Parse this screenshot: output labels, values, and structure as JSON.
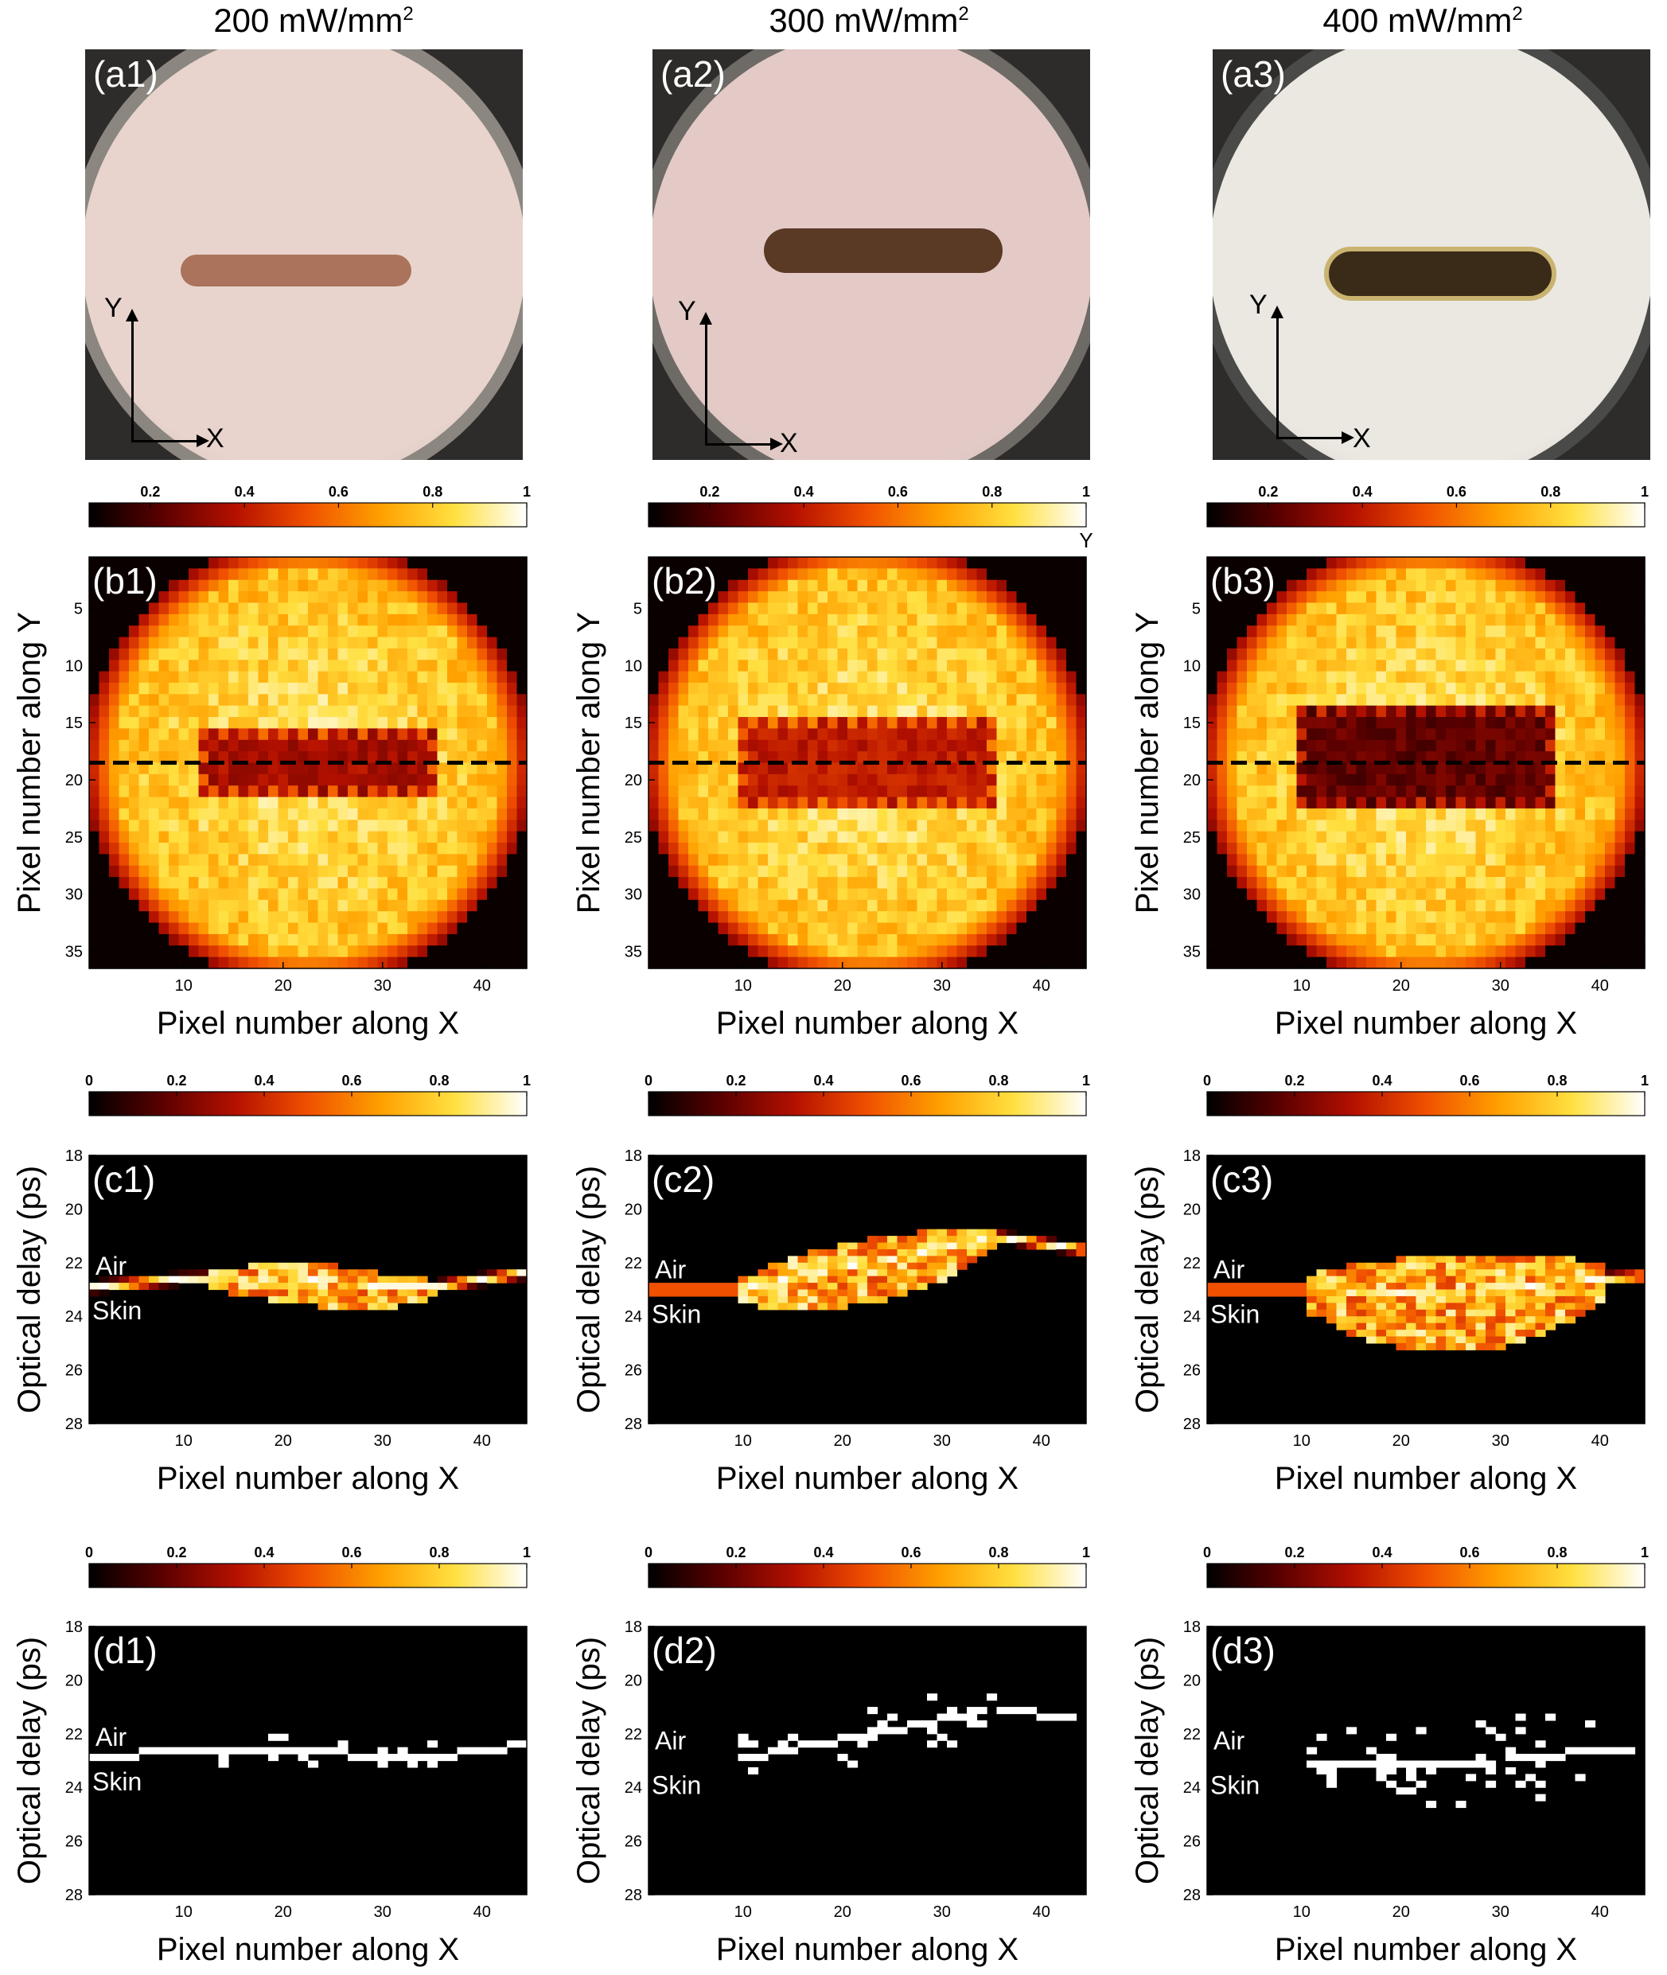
{
  "columns": [
    {
      "title_main": "200 mW/mm",
      "title_sup": "2"
    },
    {
      "title_main": "300 mW/mm",
      "title_sup": "2"
    },
    {
      "title_main": "400 mW/mm",
      "title_sup": "2"
    }
  ],
  "photos": [
    {
      "label": "(a1)",
      "axis_y": "Y",
      "axis_x": "X",
      "bg": "#e8d4cd",
      "rim": "#8b8680",
      "mark": "#9b5a3e"
    },
    {
      "label": "(a2)",
      "axis_y": "Y",
      "axis_x": "X",
      "bg": "#e3cac7",
      "rim": "#6e6a66",
      "mark": "#5a3a25"
    },
    {
      "label": "(a3)",
      "axis_y": "Y",
      "axis_x": "X",
      "bg": "#ebe8e2",
      "rim": "#4a4a48",
      "mark": "#3a2a18"
    }
  ],
  "colormap": [
    "#000000",
    "#5a0000",
    "#b41000",
    "#f05000",
    "#ffa000",
    "#ffe040",
    "#ffffff"
  ],
  "chart_data": [
    {
      "type": "heatmap",
      "panel": "(b1)",
      "xlabel": "Pixel number along X",
      "ylabel": "Pixel number along Y",
      "xticks": [
        10,
        20,
        30,
        40
      ],
      "yticks": [
        5,
        10,
        15,
        20,
        25,
        30,
        35
      ],
      "xlim": [
        0.5,
        44.5
      ],
      "ylim": [
        0.5,
        36.5
      ],
      "cbar_ticks": [
        "0.2",
        "0.4",
        "0.6",
        "0.8",
        "1"
      ],
      "line_y": 18.5,
      "lesion": {
        "x": [
          12,
          35
        ],
        "y": [
          16,
          21
        ],
        "level": 0.25
      }
    },
    {
      "type": "heatmap",
      "panel": "(b2)",
      "xlabel": "Pixel number along X",
      "ylabel": "Pixel number along Y",
      "xticks": [
        10,
        20,
        30,
        40
      ],
      "yticks": [
        5,
        10,
        15,
        20,
        25,
        30,
        35
      ],
      "xlim": [
        0.5,
        44.5
      ],
      "ylim": [
        0.5,
        36.5
      ],
      "cbar_ticks": [
        "0.2",
        "0.4",
        "0.6",
        "0.8",
        "1"
      ],
      "cbar_extra": "Y",
      "line_y": 18.5,
      "lesion": {
        "x": [
          10,
          35
        ],
        "y": [
          15,
          22
        ],
        "level": 0.3
      }
    },
    {
      "type": "heatmap",
      "panel": "(b3)",
      "xlabel": "Pixel number along X",
      "ylabel": "Pixel number along Y",
      "xticks": [
        10,
        20,
        30,
        40
      ],
      "yticks": [
        5,
        10,
        15,
        20,
        25,
        30,
        35
      ],
      "xlim": [
        0.5,
        44.5
      ],
      "ylim": [
        0.5,
        36.5
      ],
      "cbar_ticks": [
        "0.2",
        "0.4",
        "0.6",
        "0.8",
        "1"
      ],
      "line_y": 18.5,
      "lesion": {
        "x": [
          10,
          35
        ],
        "y": [
          14,
          22
        ],
        "level": 0.12
      }
    },
    {
      "type": "heatmap",
      "panel": "(c1)",
      "xlabel": "Pixel number along X",
      "ylabel": "Optical delay (ps)",
      "xticks": [
        10,
        20,
        30,
        40
      ],
      "yticks": [
        18,
        20,
        22,
        24,
        26,
        28
      ],
      "xlim": [
        0.5,
        44.5
      ],
      "ylim": [
        18,
        28
      ],
      "cbar_ticks": [
        "0",
        "0.2",
        "0.4",
        "0.6",
        "0.8",
        "1"
      ],
      "annotations": [
        "Air",
        "Skin"
      ],
      "surface": [
        [
          1,
          22.9
        ],
        [
          10,
          22.6
        ],
        [
          20,
          22.5
        ],
        [
          30,
          22.9
        ],
        [
          35,
          22.9
        ],
        [
          44,
          22.4
        ]
      ],
      "damage": {
        "x": [
          13,
          35
        ],
        "spread": 1.0
      }
    },
    {
      "type": "heatmap",
      "panel": "(c2)",
      "xlabel": "Pixel number along X",
      "ylabel": "Optical delay (ps)",
      "xticks": [
        10,
        20,
        30,
        40
      ],
      "yticks": [
        18,
        20,
        22,
        24,
        26,
        28
      ],
      "xlim": [
        0.5,
        44.5
      ],
      "ylim": [
        18,
        28
      ],
      "cbar_ticks": [
        "0",
        "0.2",
        "0.4",
        "0.6",
        "0.8",
        "1"
      ],
      "annotations": [
        "Air",
        "Skin"
      ],
      "surface": [
        [
          1,
          23.0
        ],
        [
          9,
          23.0
        ],
        [
          20,
          22.2
        ],
        [
          30,
          21.5
        ],
        [
          35,
          21.0
        ],
        [
          44,
          21.5
        ]
      ],
      "damage": {
        "x": [
          10,
          35
        ],
        "spread": 1.5
      }
    },
    {
      "type": "heatmap",
      "panel": "(c3)",
      "xlabel": "Pixel number along X",
      "ylabel": "Optical delay (ps)",
      "xticks": [
        10,
        20,
        30,
        40
      ],
      "yticks": [
        18,
        20,
        22,
        24,
        26,
        28
      ],
      "xlim": [
        0.5,
        44.5
      ],
      "ylim": [
        18,
        28
      ],
      "cbar_ticks": [
        "0",
        "0.2",
        "0.4",
        "0.6",
        "0.8",
        "1"
      ],
      "annotations": [
        "Air",
        "Skin"
      ],
      "surface": [
        [
          1,
          23.0
        ],
        [
          10,
          23.0
        ],
        [
          20,
          23.1
        ],
        [
          30,
          23.0
        ],
        [
          40,
          22.6
        ],
        [
          44,
          22.5
        ]
      ],
      "damage": {
        "x": [
          11,
          40
        ],
        "spread": 2.3
      }
    },
    {
      "type": "heatmap",
      "panel": "(d1)",
      "xlabel": "Pixel number along X",
      "ylabel": "Optical delay (ps)",
      "xticks": [
        10,
        20,
        30,
        40
      ],
      "yticks": [
        18,
        20,
        22,
        24,
        26,
        28
      ],
      "xlim": [
        0.5,
        44.5
      ],
      "ylim": [
        18,
        28
      ],
      "cbar_ticks": [
        "0",
        "0.2",
        "0.4",
        "0.6",
        "0.8",
        "1"
      ],
      "annotations": [
        "Air",
        "Skin"
      ],
      "surface": [
        [
          1,
          22.9
        ],
        [
          10,
          22.6
        ],
        [
          20,
          22.5
        ],
        [
          30,
          22.9
        ],
        [
          35,
          22.9
        ],
        [
          44,
          22.4
        ]
      ],
      "damage": {
        "x": [
          13,
          35
        ],
        "spread": 0.6
      }
    },
    {
      "type": "heatmap",
      "panel": "(d2)",
      "xlabel": "Pixel number along X",
      "ylabel": "Optical delay (ps)",
      "xticks": [
        10,
        20,
        30,
        40
      ],
      "yticks": [
        18,
        20,
        22,
        24,
        26,
        28
      ],
      "xlim": [
        0.5,
        44.5
      ],
      "ylim": [
        18,
        28
      ],
      "cbar_ticks": [
        "0",
        "0.2",
        "0.4",
        "0.6",
        "0.8",
        "1"
      ],
      "annotations": [
        "Air",
        "Skin"
      ],
      "surface": [
        [
          1,
          23.0
        ],
        [
          9,
          23.0
        ],
        [
          20,
          22.2
        ],
        [
          30,
          21.5
        ],
        [
          35,
          21.0
        ],
        [
          44,
          21.5
        ]
      ],
      "damage": {
        "x": [
          10,
          35
        ],
        "spread": 1.0
      }
    },
    {
      "type": "heatmap",
      "panel": "(d3)",
      "xlabel": "Pixel number along X",
      "ylabel": "Optical delay (ps)",
      "xticks": [
        10,
        20,
        30,
        40
      ],
      "yticks": [
        18,
        20,
        22,
        24,
        26,
        28
      ],
      "xlim": [
        0.5,
        44.5
      ],
      "ylim": [
        18,
        28
      ],
      "cbar_ticks": [
        "0",
        "0.2",
        "0.4",
        "0.6",
        "0.8",
        "1"
      ],
      "annotations": [
        "Air",
        "Skin"
      ],
      "surface": [
        [
          1,
          23.0
        ],
        [
          10,
          23.0
        ],
        [
          20,
          23.1
        ],
        [
          30,
          23.0
        ],
        [
          40,
          22.6
        ],
        [
          44,
          22.5
        ]
      ],
      "damage": {
        "x": [
          11,
          40
        ],
        "spread": 1.6
      }
    }
  ]
}
